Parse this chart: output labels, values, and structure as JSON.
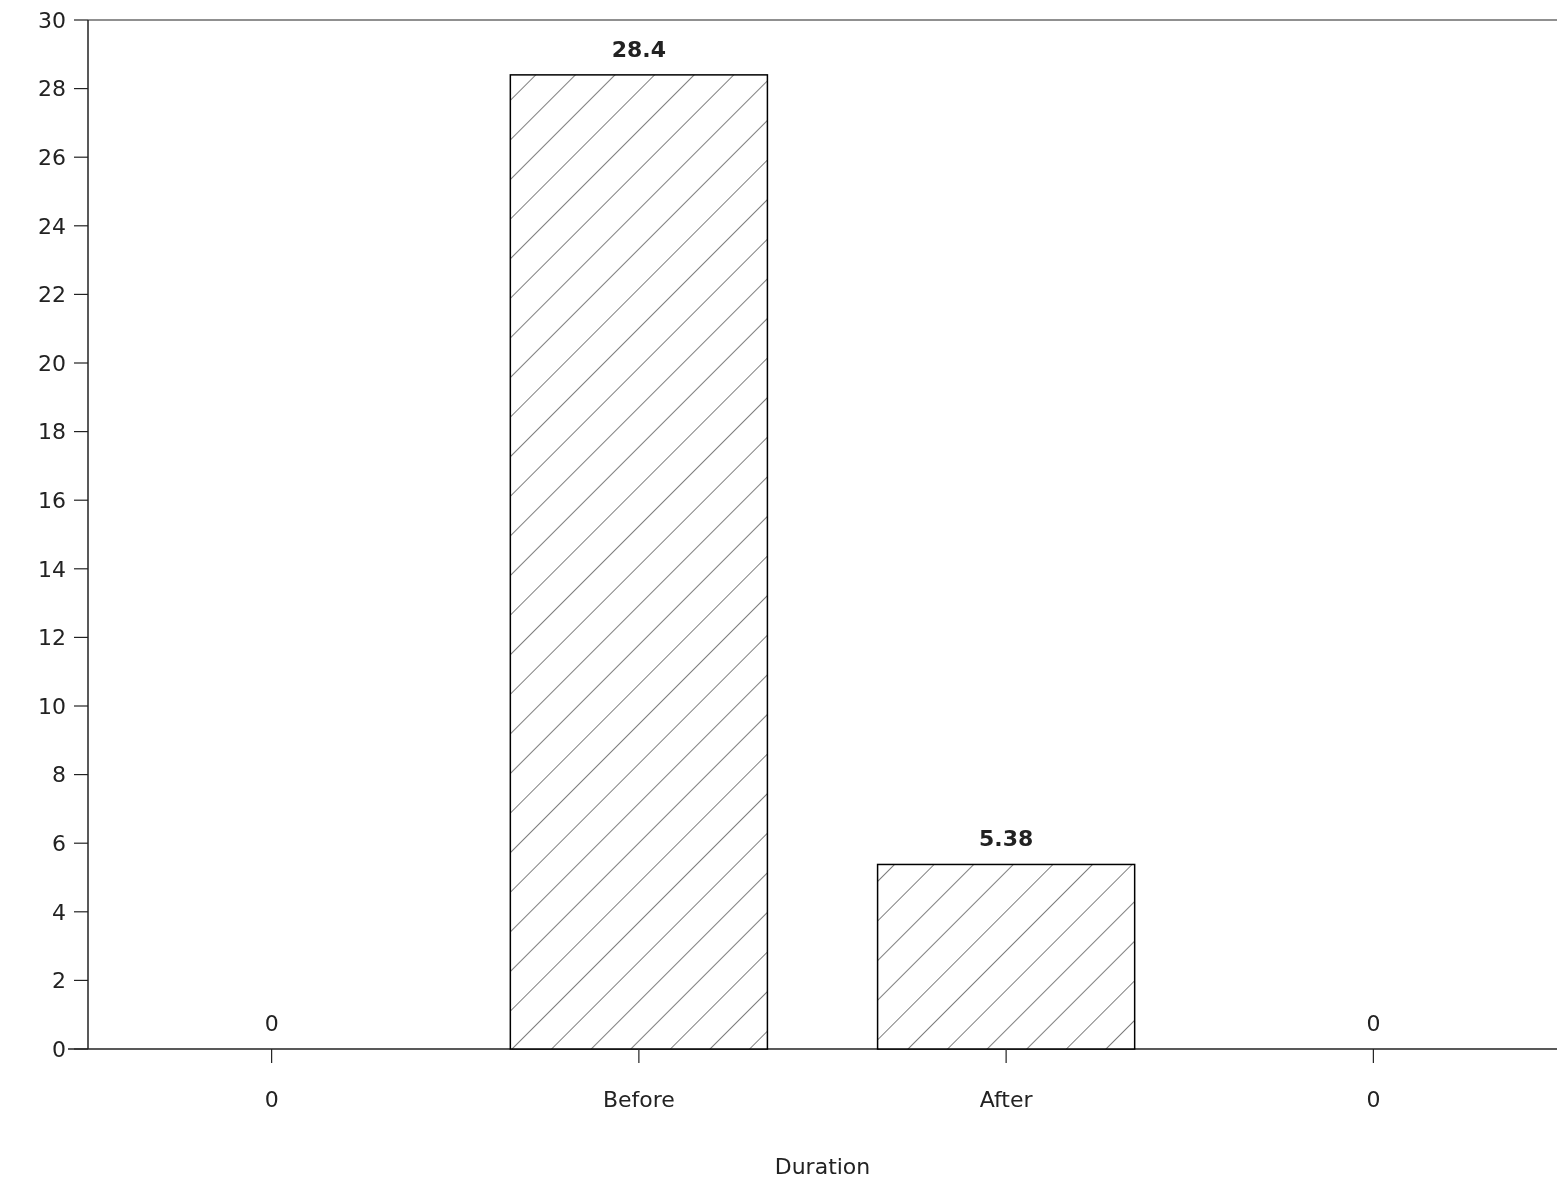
{
  "chart_data": {
    "type": "bar",
    "xlabel": "Duration",
    "categories": [
      "0",
      "Before",
      "After",
      "0"
    ],
    "values": [
      0,
      28.4,
      5.38,
      0
    ],
    "color": "#000000",
    "ylim": [
      0,
      30
    ],
    "yticks": [
      0,
      2,
      4,
      6,
      8,
      10,
      12,
      14,
      16,
      18,
      20,
      22,
      24,
      26,
      28,
      30
    ],
    "data_labels": true
  }
}
